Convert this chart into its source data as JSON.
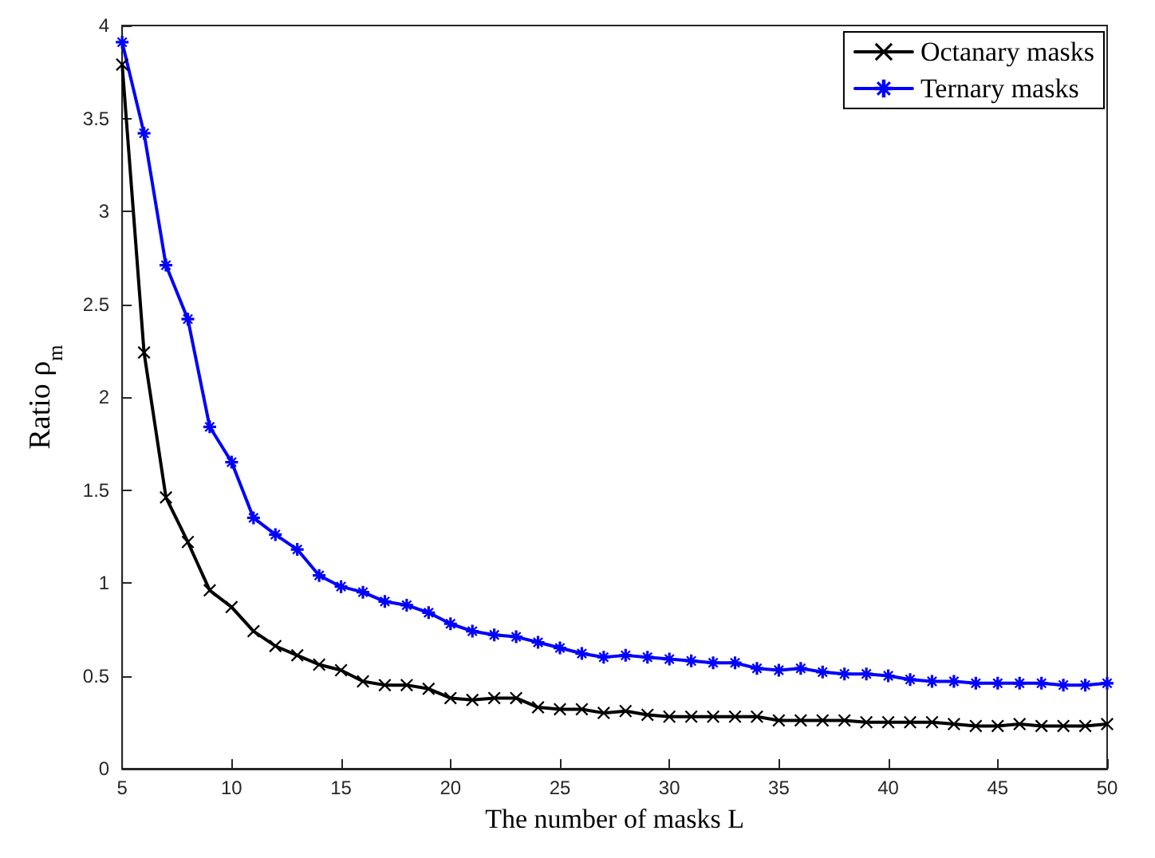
{
  "chart_data": {
    "type": "line",
    "xlabel": "The number of masks L",
    "ylabel": "Ratio ρ$_{m}$",
    "x": [
      5,
      6,
      7,
      8,
      9,
      10,
      11,
      12,
      13,
      14,
      15,
      16,
      17,
      18,
      19,
      20,
      21,
      22,
      23,
      24,
      25,
      26,
      27,
      28,
      29,
      30,
      31,
      32,
      33,
      34,
      35,
      36,
      37,
      38,
      39,
      40,
      41,
      42,
      43,
      44,
      45,
      46,
      47,
      48,
      49,
      50
    ],
    "series": [
      {
        "name": "Octanary masks",
        "color": "#000000",
        "marker": "cross",
        "values": [
          3.79,
          2.24,
          1.46,
          1.22,
          0.96,
          0.87,
          0.74,
          0.66,
          0.61,
          0.56,
          0.53,
          0.47,
          0.45,
          0.45,
          0.43,
          0.38,
          0.37,
          0.38,
          0.38,
          0.33,
          0.32,
          0.32,
          0.3,
          0.31,
          0.29,
          0.28,
          0.28,
          0.28,
          0.28,
          0.28,
          0.26,
          0.26,
          0.26,
          0.26,
          0.25,
          0.25,
          0.25,
          0.25,
          0.24,
          0.23,
          0.23,
          0.24,
          0.23,
          0.23,
          0.23,
          0.24
        ]
      },
      {
        "name": "Ternary masks",
        "color": "#0000ff",
        "marker": "star",
        "values": [
          3.91,
          3.42,
          2.71,
          2.42,
          1.84,
          1.65,
          1.35,
          1.26,
          1.18,
          1.04,
          0.98,
          0.95,
          0.9,
          0.88,
          0.84,
          0.78,
          0.74,
          0.72,
          0.71,
          0.68,
          0.65,
          0.62,
          0.6,
          0.61,
          0.6,
          0.59,
          0.58,
          0.57,
          0.57,
          0.54,
          0.53,
          0.54,
          0.52,
          0.51,
          0.51,
          0.5,
          0.48,
          0.47,
          0.47,
          0.46,
          0.46,
          0.46,
          0.46,
          0.45,
          0.45,
          0.46
        ]
      }
    ],
    "xlim": [
      5,
      50
    ],
    "xticks": [
      5,
      10,
      15,
      20,
      25,
      30,
      35,
      40,
      45,
      50
    ],
    "ylim": [
      0,
      4
    ],
    "yticks": [
      0,
      0.5,
      1,
      1.5,
      2,
      2.5,
      3,
      3.5,
      4
    ],
    "grid": false,
    "legend": "top right",
    "line_style": "solid"
  }
}
